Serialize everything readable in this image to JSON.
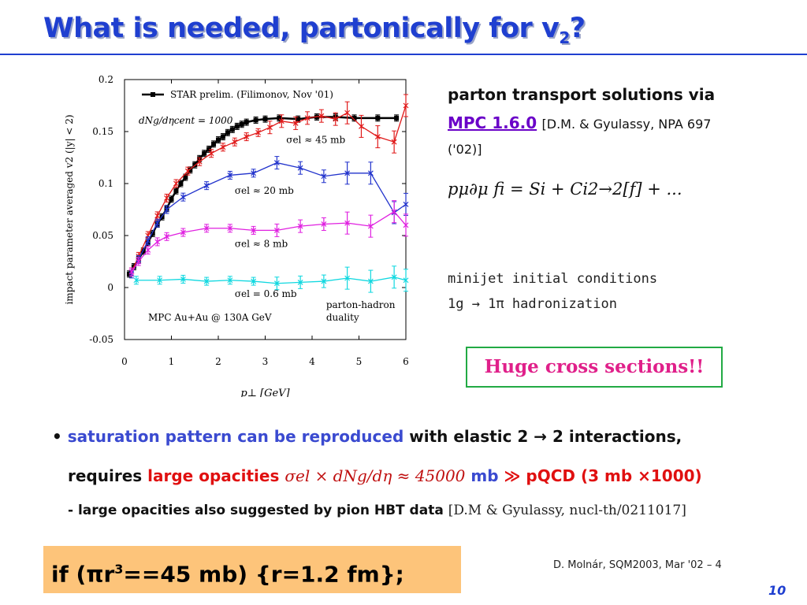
{
  "title": {
    "main": "What is needed, partonically for v",
    "sub": "2",
    "end": "?"
  },
  "right": {
    "line1": "parton transport solutions via",
    "mpc": "MPC 1.6.0",
    "ref1": "[D.M. & Gyulassy, NPA 697",
    "ref1b": "('02)]",
    "formula": "pμ∂μ fi = Si + Ci2→2[f] + ...",
    "minijet": "minijet initial conditions",
    "hadronization": "1g → 1π hadronization"
  },
  "huge_label": "Huge cross sections!!",
  "bullet1": {
    "dot": "•",
    "colored": "saturation pattern can be reproduced",
    "rest": "with elastic 2 → 2 interactions,"
  },
  "bullet2": {
    "lead": "requires",
    "red1": "large opacities",
    "formula": "σel × dNg/dη ≈ 45000",
    "mb": "mb",
    "gg": "≫",
    "pqcd": "pQCD (3 mb ×1000)"
  },
  "bullet3": {
    "text": "- large opacities also suggested by pion HBT data",
    "ref": "[D.M & Gyulassy, nucl-th/0211017]"
  },
  "orange": {
    "pre": "if  (πr",
    "sup": "3",
    "post": "==45 mb)  {r=1.2 fm};"
  },
  "footer": {
    "text": "D. Molnár, SQM2003, Mar '02    –    4"
  },
  "page_number": "10",
  "chart_data": {
    "type": "line",
    "xlabel": "p⊥ [GeV]",
    "ylabel": "impact parameter averaged v2 (|y| < 2)",
    "xlim": [
      0,
      6
    ],
    "ylim": [
      -0.05,
      0.2
    ],
    "xticks": [
      "0",
      "1",
      "2",
      "3",
      "4",
      "5",
      "6"
    ],
    "yticks": [
      "-0.05",
      "0",
      "0.05",
      "0.1",
      "0.15",
      "0.2"
    ],
    "legend": "STAR prelim. (Filimonov, Nov '01)",
    "annotation_dn": "dNg/dηcent = 1000",
    "annotation_mpc": "MPC Au+Au @ 130A GeV",
    "annotation_duality": [
      "parton-hadron",
      "duality"
    ],
    "series": [
      {
        "name": "STAR prelim. (Filimonov, Nov '01)",
        "color": "#000000",
        "x": [
          0.1,
          0.2,
          0.3,
          0.4,
          0.5,
          0.6,
          0.7,
          0.8,
          0.9,
          1.0,
          1.1,
          1.2,
          1.3,
          1.4,
          1.5,
          1.6,
          1.7,
          1.8,
          1.9,
          2.0,
          2.1,
          2.2,
          2.3,
          2.4,
          2.5,
          2.6,
          2.8,
          3.0,
          3.3,
          3.7,
          4.1,
          4.5,
          4.9,
          5.4,
          5.8
        ],
        "y": [
          0.013,
          0.02,
          0.027,
          0.035,
          0.043,
          0.052,
          0.061,
          0.068,
          0.076,
          0.085,
          0.093,
          0.1,
          0.106,
          0.113,
          0.118,
          0.124,
          0.129,
          0.133,
          0.138,
          0.142,
          0.145,
          0.149,
          0.152,
          0.155,
          0.157,
          0.159,
          0.161,
          0.162,
          0.163,
          0.162,
          0.164,
          0.164,
          0.163,
          0.163,
          0.163
        ]
      },
      {
        "name": "σel ≈ 45 mb",
        "color": "#e01818",
        "x": [
          0.15,
          0.3,
          0.5,
          0.7,
          0.9,
          1.1,
          1.35,
          1.6,
          1.85,
          2.1,
          2.35,
          2.6,
          2.85,
          3.1,
          3.35,
          3.65,
          3.9,
          4.2,
          4.5,
          4.75,
          5.05,
          5.4,
          5.75,
          6.0
        ],
        "y": [
          0.015,
          0.03,
          0.05,
          0.069,
          0.086,
          0.1,
          0.112,
          0.121,
          0.129,
          0.135,
          0.14,
          0.145,
          0.149,
          0.154,
          0.16,
          0.158,
          0.163,
          0.165,
          0.162,
          0.168,
          0.155,
          0.145,
          0.14,
          0.175
        ]
      },
      {
        "name": "σel ≈ 20 mb",
        "color": "#2233cc",
        "x": [
          0.15,
          0.3,
          0.5,
          0.7,
          0.9,
          1.25,
          1.75,
          2.25,
          2.75,
          3.25,
          3.75,
          4.25,
          4.75,
          5.25,
          5.75,
          6.0
        ],
        "y": [
          0.013,
          0.027,
          0.045,
          0.062,
          0.075,
          0.087,
          0.098,
          0.108,
          0.11,
          0.12,
          0.115,
          0.107,
          0.11,
          0.11,
          0.072,
          0.08
        ]
      },
      {
        "name": "σel ≈ 8 mb",
        "color": "#e020e0",
        "x": [
          0.15,
          0.3,
          0.5,
          0.7,
          0.9,
          1.25,
          1.75,
          2.25,
          2.75,
          3.25,
          3.75,
          4.25,
          4.75,
          5.25,
          5.75,
          6.0
        ],
        "y": [
          0.015,
          0.025,
          0.036,
          0.044,
          0.049,
          0.053,
          0.057,
          0.057,
          0.055,
          0.055,
          0.059,
          0.061,
          0.062,
          0.059,
          0.073,
          0.06
        ]
      },
      {
        "name": "σel = 0.6 mb",
        "color": "#10d8e0",
        "x": [
          0.25,
          0.75,
          1.25,
          1.75,
          2.25,
          2.75,
          3.25,
          3.75,
          4.25,
          4.75,
          5.25,
          5.75,
          6.0
        ],
        "y": [
          0.007,
          0.007,
          0.008,
          0.006,
          0.007,
          0.006,
          0.004,
          0.005,
          0.006,
          0.009,
          0.006,
          0.01,
          0.007
        ]
      }
    ],
    "series_labels": [
      {
        "text": "σel ≈ 45 mb",
        "x": 3.45,
        "y": 0.139
      },
      {
        "text": "σel ≈ 20 mb",
        "x": 2.35,
        "y": 0.09
      },
      {
        "text": "σel ≈ 8 mb",
        "x": 2.35,
        "y": 0.039
      },
      {
        "text": "σel = 0.6 mb",
        "x": 2.35,
        "y": -0.009
      }
    ]
  }
}
